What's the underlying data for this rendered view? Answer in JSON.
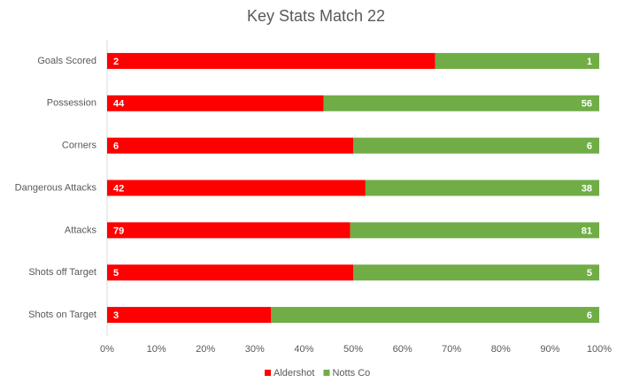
{
  "chart_data": {
    "type": "bar",
    "orientation": "horizontal",
    "stacking": "percent",
    "title": "Key Stats Match 22",
    "categories": [
      "Goals Scored",
      "Possession",
      "Corners",
      "Dangerous Attacks",
      "Attacks",
      "Shots off Target",
      "Shots on Target"
    ],
    "series": [
      {
        "name": "Aldershot",
        "color": "#ff0000",
        "values": [
          2,
          44,
          6,
          42,
          79,
          5,
          3
        ]
      },
      {
        "name": "Notts Co",
        "color": "#70ad47",
        "values": [
          1,
          56,
          6,
          38,
          81,
          5,
          6
        ]
      }
    ],
    "xlim": [
      0,
      100
    ],
    "xticks": [
      {
        "value": 0,
        "label": "0%"
      },
      {
        "value": 10,
        "label": "10%"
      },
      {
        "value": 20,
        "label": "20%"
      },
      {
        "value": 30,
        "label": "30%"
      },
      {
        "value": 40,
        "label": "40%"
      },
      {
        "value": 50,
        "label": "50%"
      },
      {
        "value": 60,
        "label": "60%"
      },
      {
        "value": 70,
        "label": "70%"
      },
      {
        "value": 80,
        "label": "80%"
      },
      {
        "value": 90,
        "label": "90%"
      },
      {
        "value": 100,
        "label": "100%"
      }
    ],
    "grid": false,
    "legend": "bottom"
  }
}
